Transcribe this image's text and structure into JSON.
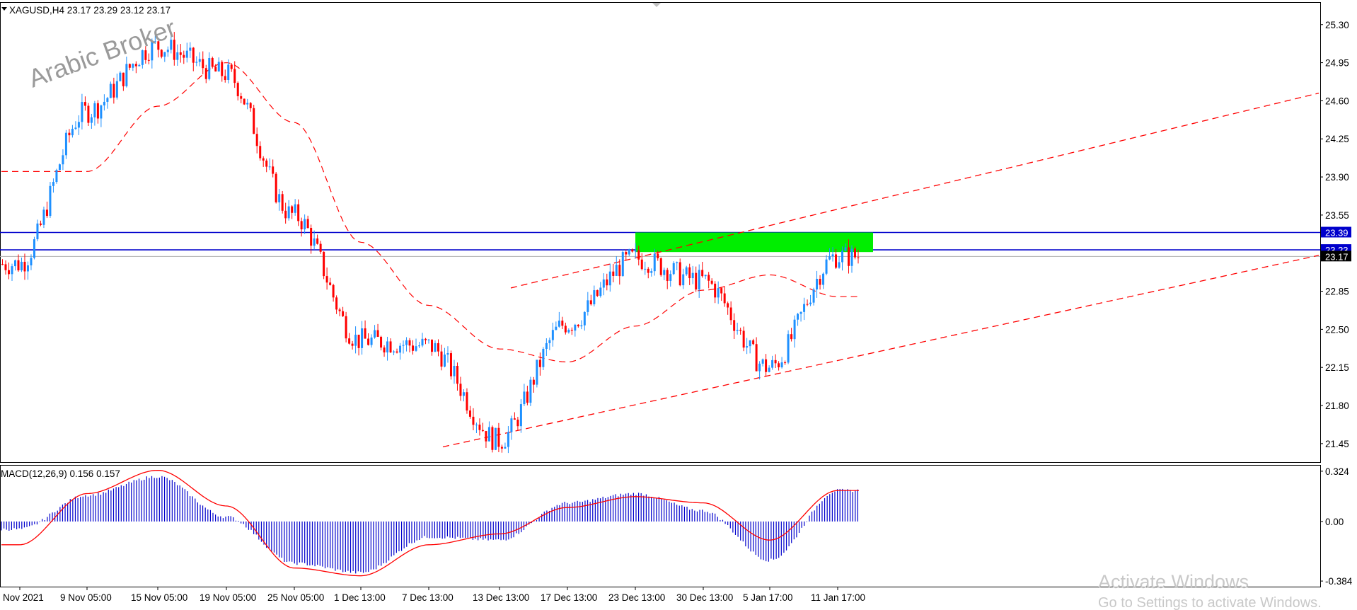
{
  "chart_data": [
    {
      "type": "candlestick",
      "title": "XAGUSD,H4  23.17 23.29 23.12 23.17",
      "watermark": "Arabic Broker",
      "ylim": [
        21.28,
        25.5
      ],
      "y_ticks": [
        "25.30",
        "24.95",
        "24.60",
        "24.25",
        "23.90",
        "23.55",
        "22.85",
        "22.50",
        "22.15",
        "21.80",
        "21.45"
      ],
      "price_tags": [
        {
          "label": "23.39",
          "value": 23.39,
          "color": "#0000cc"
        },
        {
          "label": "23.23",
          "value": 23.23,
          "color": "#0000cc"
        },
        {
          "label": "23.17",
          "value": 23.17,
          "color": "#000000"
        }
      ],
      "horizontal_lines": [
        {
          "value": 23.39,
          "color": "#0000cc"
        },
        {
          "value": 23.23,
          "color": "#0000cc"
        },
        {
          "value": 23.17,
          "color": "#b0b0b0"
        }
      ],
      "zone": {
        "from": "23 Dec 13:00",
        "to": "11 Jan 17:00",
        "low": 23.21,
        "high": 23.39,
        "color": "#00ee00"
      },
      "trendlines": [
        {
          "from": [
            "17 Dec 13:00",
            22.88
          ],
          "to": [
            "end",
            24.67
          ],
          "color": "#ff0000",
          "style": "dashed"
        },
        {
          "from": [
            "13 Dec 13:00",
            21.42
          ],
          "to": [
            "end",
            23.18
          ],
          "color": "#ff0000",
          "style": "dashed"
        }
      ],
      "x_labels": [
        "Nov 2021",
        "9 Nov 05:00",
        "15 Nov 05:00",
        "19 Nov 05:00",
        "25 Nov 05:00",
        "1 Dec 13:00",
        "7 Dec 13:00",
        "13 Dec 13:00",
        "17 Dec 13:00",
        "23 Dec 13:00",
        "30 Dec 13:00",
        "5 Jan 17:00",
        "11 Jan 17:00"
      ],
      "ma_anchors": [
        [
          "Nov 2021",
          23.95
        ],
        [
          "9 Nov 05:00",
          23.95
        ],
        [
          "15 Nov 05:00",
          24.55
        ],
        [
          "19 Nov 05:00",
          24.95
        ],
        [
          "25 Nov 05:00",
          24.4
        ],
        [
          "1 Dec 13:00",
          23.3
        ],
        [
          "7 Dec 13:00",
          22.72
        ],
        [
          "13 Dec 13:00",
          22.32
        ],
        [
          "17 Dec 13:00",
          22.2
        ],
        [
          "23 Dec 13:00",
          22.53
        ],
        [
          "30 Dec 13:00",
          22.86
        ],
        [
          "5 Jan 17:00",
          23.0
        ],
        [
          "11 Jan 17:00",
          22.8
        ]
      ],
      "price_anchors": [
        [
          "Nov 2021",
          23.1
        ],
        [
          "9 Nov 05:00",
          24.5
        ],
        [
          "15 Nov 05:00",
          25.1
        ],
        [
          "19 Nov 05:00",
          24.85
        ],
        [
          "25 Nov 05:00",
          23.55
        ],
        [
          "1 Dec 13:00",
          22.4
        ],
        [
          "7 Dec 13:00",
          22.35
        ],
        [
          "13 Dec 13:00",
          21.48
        ],
        [
          "17 Dec 13:00",
          22.55
        ],
        [
          "23 Dec 13:00",
          23.15
        ],
        [
          "30 Dec 13:00",
          22.95
        ],
        [
          "5 Jan 17:00",
          22.15
        ],
        [
          "11 Jan 17:00",
          23.17
        ]
      ],
      "bull_color": "#1e90ff",
      "bear_color": "#ff0000"
    },
    {
      "type": "bar",
      "title": "MACD(12,26,9) 0.156 0.157",
      "ylim": [
        -0.42,
        0.36
      ],
      "y_ticks": [
        "0.324",
        "0.00",
        "-0.384"
      ],
      "histogram_color": "#0000cc",
      "signal_color": "#ff0000",
      "histogram_anchors": [
        [
          "Nov 2021",
          -0.05
        ],
        [
          "9 Nov 05:00",
          0.17
        ],
        [
          "15 Nov 05:00",
          0.29
        ],
        [
          "19 Nov 05:00",
          0.03
        ],
        [
          "25 Nov 05:00",
          -0.27
        ],
        [
          "1 Dec 13:00",
          -0.33
        ],
        [
          "7 Dec 13:00",
          -0.1
        ],
        [
          "13 Dec 13:00",
          -0.12
        ],
        [
          "17 Dec 13:00",
          0.12
        ],
        [
          "23 Dec 13:00",
          0.18
        ],
        [
          "30 Dec 13:00",
          0.07
        ],
        [
          "5 Jan 17:00",
          -0.25
        ],
        [
          "11 Jan 17:00",
          0.2
        ]
      ],
      "signal_anchors": [
        [
          "Nov 2021",
          -0.15
        ],
        [
          "9 Nov 05:00",
          0.18
        ],
        [
          "15 Nov 05:00",
          0.33
        ],
        [
          "19 Nov 05:00",
          0.1
        ],
        [
          "25 Nov 05:00",
          -0.3
        ],
        [
          "1 Dec 13:00",
          -0.35
        ],
        [
          "7 Dec 13:00",
          -0.15
        ],
        [
          "13 Dec 13:00",
          -0.08
        ],
        [
          "17 Dec 13:00",
          0.09
        ],
        [
          "23 Dec 13:00",
          0.16
        ],
        [
          "30 Dec 13:00",
          0.12
        ],
        [
          "5 Jan 17:00",
          -0.12
        ],
        [
          "11 Jan 17:00",
          0.2
        ]
      ]
    }
  ],
  "overlay": {
    "activate_title": "Activate Windows",
    "activate_sub": "Go to Settings to activate Windows."
  }
}
